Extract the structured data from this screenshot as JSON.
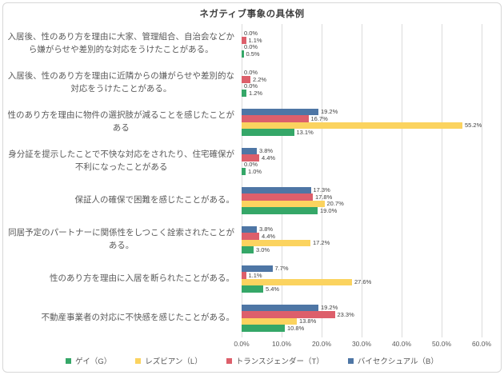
{
  "frame": {
    "border_color": "#d7d7d7",
    "background": "#ffffff"
  },
  "chart_data": {
    "type": "bar",
    "orientation": "horizontal",
    "title": "ネガティブ事象の具体例",
    "xlabel": "",
    "ylabel": "",
    "x_axis": {
      "min": 0,
      "max": 60,
      "tick_step": 10,
      "ticks": [
        "0.0%",
        "10.0%",
        "20.0%",
        "30.0%",
        "40.0%",
        "50.0%",
        "60.0%"
      ],
      "gridlines": true,
      "gridline_color": "#dcdcdc"
    },
    "data_labels": true,
    "categories": [
      "入居後、性のあり方を理由に大家、管理組合、自治会などか\nら嫌がらせや差別的な対応をうけたことがある。",
      "入居後、性のあり方を理由に近隣からの嫌がらせや差別的な\n対応をうけたことがある。",
      "性のあり方を理由に物件の選択肢が減ることを感じたことが\nある",
      "身分証を提示したことで不快な対応をされたり、住宅確保が\n不利になったことがある",
      "保証人の確保で困難を感じたことがある。",
      "同居予定のパートナーに関係性をしつこく詮索されたことが\nある。",
      "性のあり方を理由に入居を断られたことがある。",
      "不動産事業者の対応に不快感を感じたことがある。"
    ],
    "series": [
      {
        "name": "ゲイ（G）",
        "color": "#35a768",
        "values": [
          0.5,
          1.2,
          13.1,
          1.0,
          19.0,
          3.0,
          5.4,
          10.8
        ]
      },
      {
        "name": "レズビアン（L）",
        "color": "#fbd35f",
        "values": [
          0.0,
          0.0,
          55.2,
          0.0,
          20.7,
          17.2,
          27.6,
          13.8
        ]
      },
      {
        "name": "トランスジェンダー（T）",
        "color": "#dd5f6b",
        "values": [
          1.1,
          2.2,
          16.7,
          4.4,
          17.8,
          4.4,
          1.1,
          23.3
        ]
      },
      {
        "name": "バイセクシュアル（B）",
        "color": "#4e76a5",
        "values": [
          0.0,
          0.0,
          19.2,
          3.8,
          17.3,
          3.8,
          7.7,
          19.2
        ]
      }
    ],
    "bar_order_top_to_bottom": [
      "バイセクシュアル（B）",
      "トランスジェンダー（T）",
      "レズビアン（L）",
      "ゲイ（G）"
    ],
    "legend": {
      "position": "bottom",
      "order": [
        "ゲイ（G）",
        "レズビアン（L）",
        "トランスジェンダー（T）",
        "バイセクシュアル（B）"
      ]
    }
  }
}
